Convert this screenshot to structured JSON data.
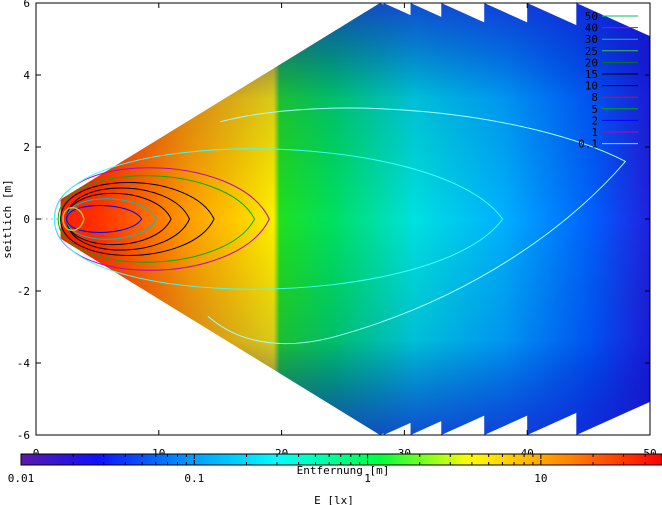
{
  "chart_data": {
    "type": "heatmap",
    "xlabel": "Entfernung [m]",
    "ylabel": "seitlich [m]",
    "colorbar_label": "E [lx]",
    "xlim": [
      0,
      50
    ],
    "ylim": [
      -6,
      6
    ],
    "x_ticks": [
      "0",
      "10",
      "20",
      "30",
      "40",
      "50"
    ],
    "y_ticks": [
      "-6",
      "-4",
      "-2",
      "0",
      "2",
      "4",
      "6"
    ],
    "x_tick_values": [
      0,
      10,
      20,
      30,
      40,
      50
    ],
    "y_tick_values": [
      -6,
      -4,
      -2,
      0,
      2,
      4,
      6
    ],
    "colorbar_scale": "log",
    "colorbar_range": [
      0.01,
      50
    ],
    "colorbar_ticks": [
      "0.01",
      "0.1",
      "1",
      "10"
    ],
    "colorbar_tick_values": [
      0.01,
      0.1,
      1,
      10
    ],
    "grid": true,
    "legend_position": "top-right",
    "contour_levels": [
      {
        "label": "50",
        "color": "#00c060"
      },
      {
        "label": "40",
        "color": "#c000c0"
      },
      {
        "label": "30",
        "color": "#00c0c0"
      },
      {
        "label": "25",
        "color": "#40c040"
      },
      {
        "label": "20",
        "color": "#008000"
      },
      {
        "label": "15",
        "color": "#000000"
      },
      {
        "label": "10",
        "color": "#000000"
      },
      {
        "label": "8",
        "color": "#ff0000"
      },
      {
        "label": "5",
        "color": "#00b000"
      },
      {
        "label": "2",
        "color": "#0000ff"
      },
      {
        "label": "1",
        "color": "#c000c0"
      },
      {
        "label": "0.1",
        "color": "#40ffff"
      }
    ]
  }
}
